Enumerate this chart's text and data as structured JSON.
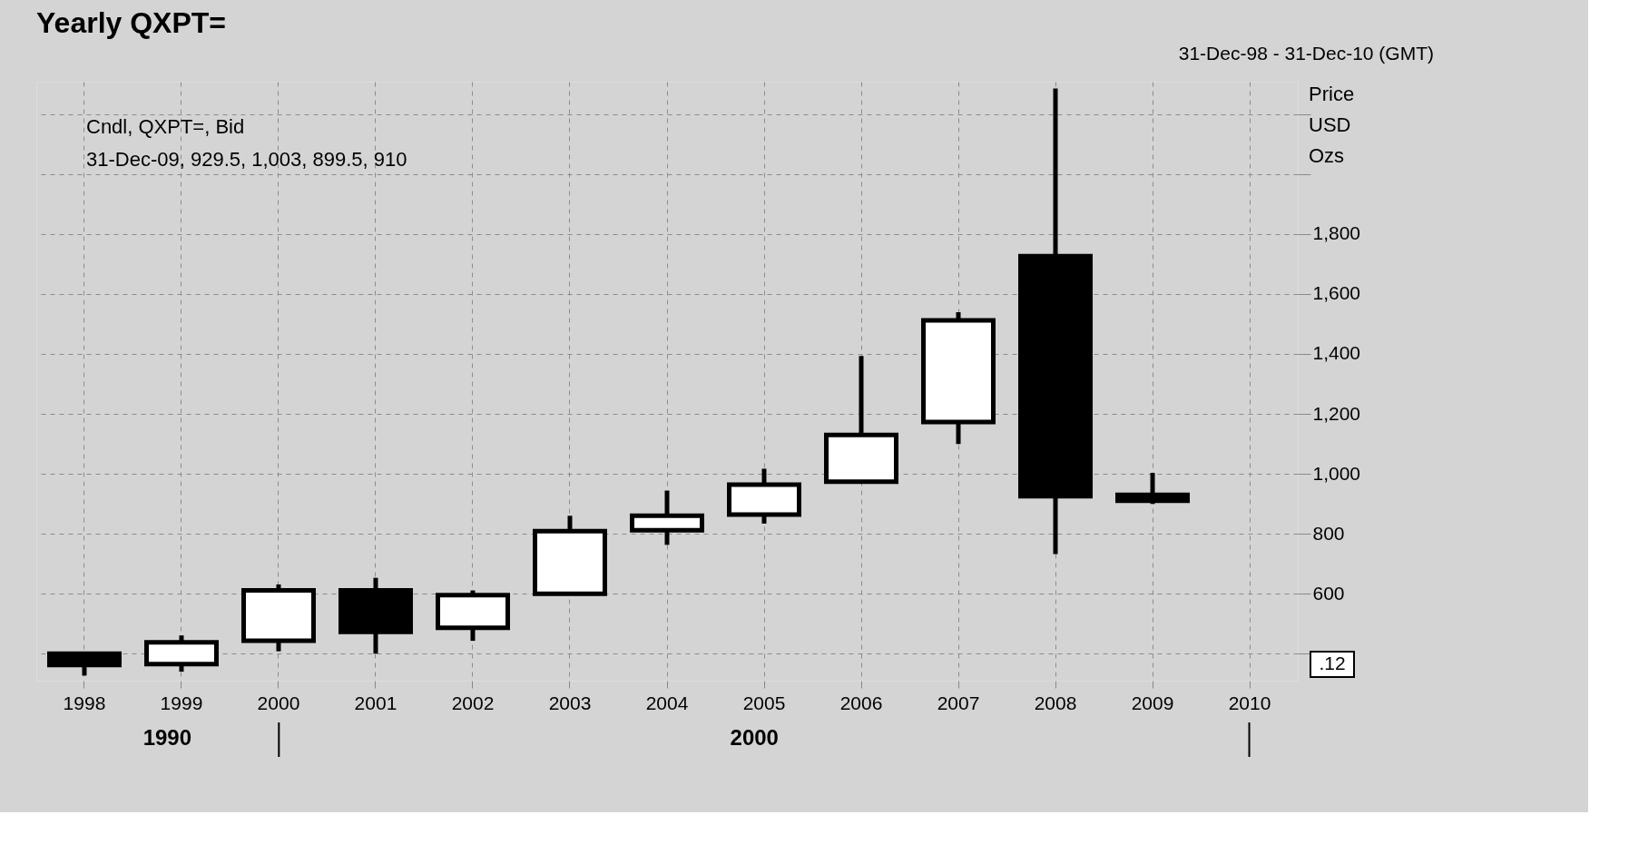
{
  "chart_data": {
    "type": "candlestick",
    "title": "Yearly QXPT=",
    "subtitle": "31-Dec-98 - 31-Dec-10 (GMT)",
    "ylabel": "Price\nUSD\nOzs",
    "categories": [
      "1998",
      "1999",
      "2000",
      "2001",
      "2002",
      "2003",
      "2004",
      "2005",
      "2006",
      "2007",
      "2008",
      "2009",
      "2010"
    ],
    "ohlc": [
      [
        400,
        406,
        327,
        362
      ],
      [
        365,
        461,
        340,
        438
      ],
      [
        443,
        631,
        408,
        611
      ],
      [
        611,
        653,
        400,
        473
      ],
      [
        486,
        611,
        443,
        595
      ],
      [
        600,
        860,
        600,
        809
      ],
      [
        812,
        944,
        763,
        860
      ],
      [
        864,
        1017,
        834,
        964
      ],
      [
        974,
        1393,
        974,
        1130
      ],
      [
        1173,
        1539,
        1099,
        1512
      ],
      [
        1726,
        2285,
        732,
        925
      ],
      [
        929.5,
        1003,
        899.5,
        910
      ],
      null
    ],
    "ylim": [
      310,
      2308
    ],
    "yticks": [
      {
        "value": 400,
        "label": null
      },
      600,
      800,
      {
        "value": 1000,
        "label": "1,000"
      },
      {
        "value": 1200,
        "label": "1,200"
      },
      {
        "value": 1400,
        "label": "1,400"
      },
      {
        "value": 1600,
        "label": "1,600"
      },
      {
        "value": 1800,
        "label": "1,800"
      },
      {
        "value": 2000,
        "label": null
      },
      {
        "value": 2200,
        "label": null
      }
    ],
    "grid": true,
    "annotations": [
      "Cndl, QXPT=, Bid",
      "31-Dec-09, 929.5, 1,003, 899.5, 910",
      ".12",
      "1990",
      "2000"
    ]
  }
}
